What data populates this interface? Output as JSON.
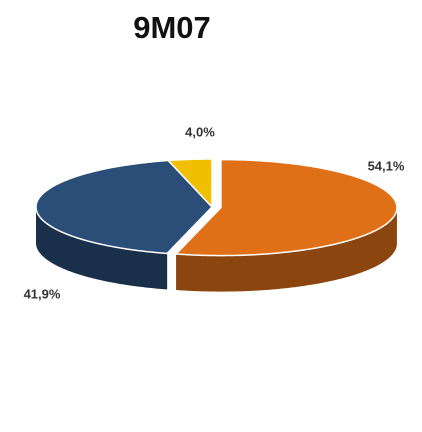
{
  "chart_data": {
    "type": "pie",
    "title": "9M07",
    "values": [
      54.1,
      41.9,
      4.0
    ],
    "value_labels": [
      "54,1%",
      "41,9%",
      "4,0%"
    ],
    "colors": [
      "#e07018",
      "#2a4e78",
      "#f0c000"
    ]
  }
}
